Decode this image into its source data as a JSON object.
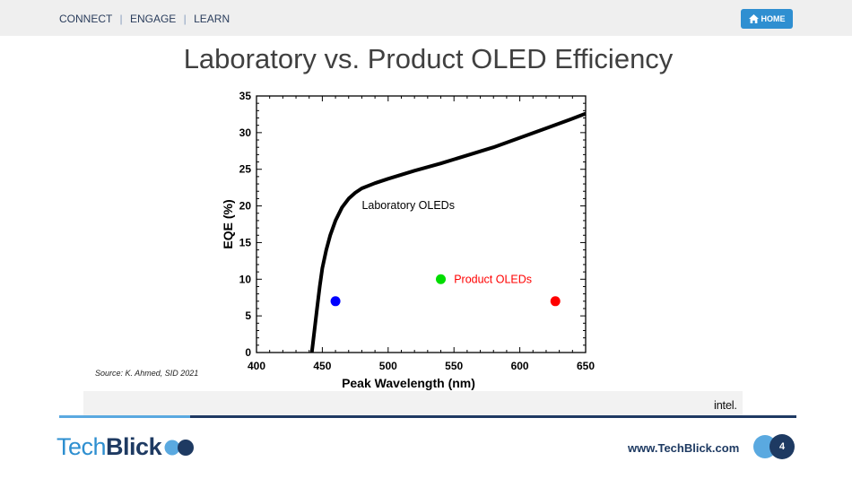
{
  "nav": {
    "items": [
      "CONNECT",
      "ENGAGE",
      "LEARN"
    ],
    "separator": "|",
    "home_label": "HOME"
  },
  "slide": {
    "title": "Laboratory vs. Product OLED Efficiency",
    "page_number": "4"
  },
  "chart_data": {
    "type": "scatter",
    "xlabel": "Peak Wavelength (nm)",
    "ylabel": "EQE (%)",
    "xlim": [
      400,
      650
    ],
    "ylim": [
      0,
      35
    ],
    "x_ticks": [
      400,
      450,
      500,
      550,
      600,
      650
    ],
    "y_ticks": [
      0,
      5,
      10,
      15,
      20,
      25,
      30,
      35
    ],
    "grid": false,
    "series": [
      {
        "name": "Laboratory OLEDs",
        "kind": "line",
        "color": "#000000",
        "points": [
          [
            442,
            0
          ],
          [
            444,
            3
          ],
          [
            446,
            6
          ],
          [
            448,
            9
          ],
          [
            450,
            11.5
          ],
          [
            453,
            14
          ],
          [
            456,
            16
          ],
          [
            460,
            18
          ],
          [
            465,
            19.8
          ],
          [
            470,
            21
          ],
          [
            475,
            21.8
          ],
          [
            480,
            22.4
          ],
          [
            490,
            23.1
          ],
          [
            500,
            23.7
          ],
          [
            520,
            24.8
          ],
          [
            540,
            25.8
          ],
          [
            560,
            26.9
          ],
          [
            580,
            28
          ],
          [
            600,
            29.3
          ],
          [
            620,
            30.6
          ],
          [
            640,
            31.9
          ],
          [
            650,
            32.6
          ]
        ]
      },
      {
        "name": "Product OLEDs",
        "kind": "scatter",
        "points": [
          {
            "x": 460,
            "y": 7,
            "color": "#0000ff"
          },
          {
            "x": 540,
            "y": 10,
            "color": "#00dd00"
          },
          {
            "x": 627,
            "y": 7,
            "color": "#ff0000"
          }
        ]
      }
    ],
    "annotations": [
      {
        "text": "Laboratory OLEDs",
        "x": 480,
        "y": 19.6,
        "color": "#000000"
      },
      {
        "text": "Product OLEDs",
        "x": 550,
        "y": 9.5,
        "color": "#ff0000"
      }
    ]
  },
  "source": "Source: K. Ahmed, SID 2021",
  "sponsor_logo": "intel.",
  "brand": {
    "tech": "Tech",
    "blick": "Blick",
    "colors": {
      "light": "#2e8fd0",
      "dark": "#1e3a62"
    }
  },
  "footer": {
    "website": "www.TechBlick.com"
  }
}
